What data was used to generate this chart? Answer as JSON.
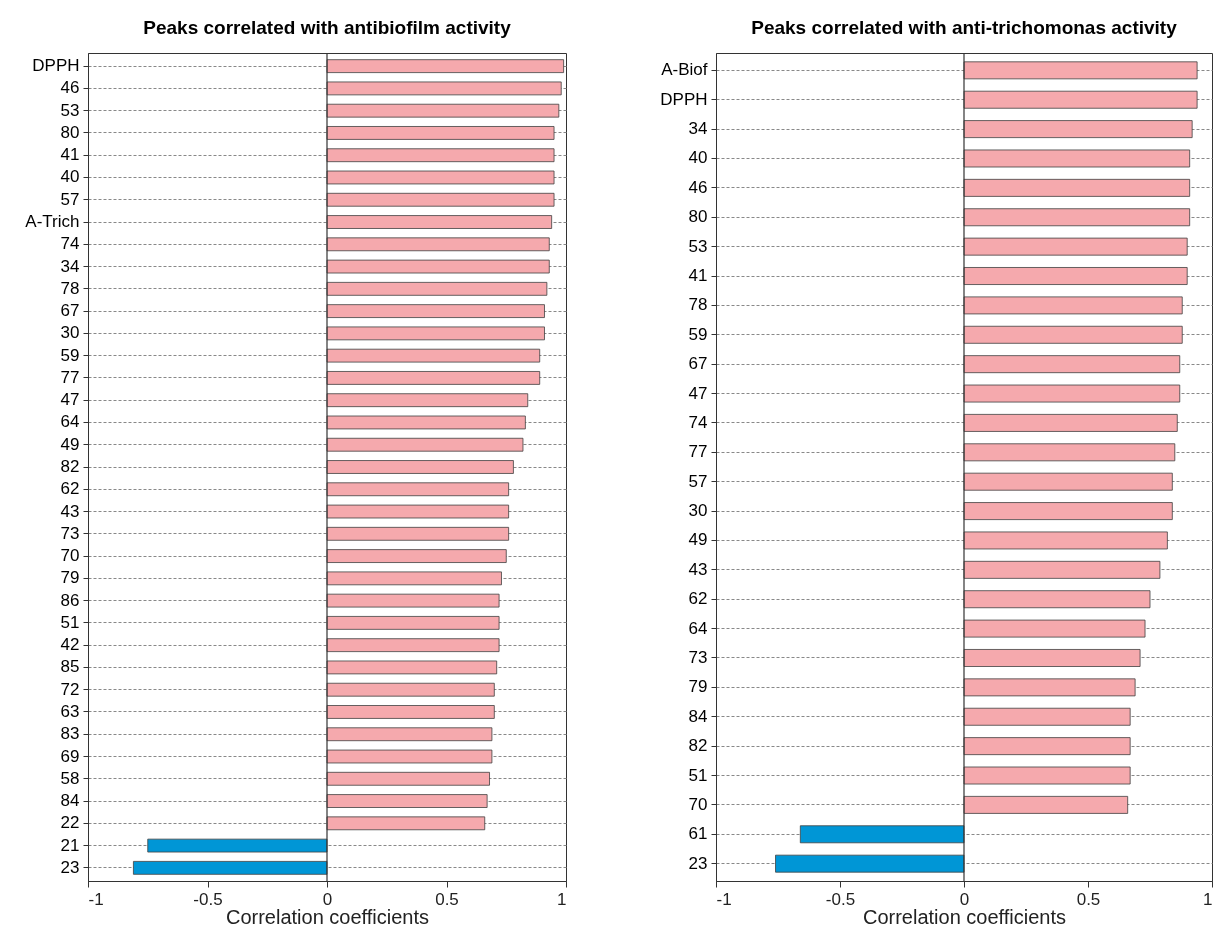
{
  "chart_data": [
    {
      "type": "bar",
      "orientation": "horizontal",
      "title": "Peaks correlated with antibiofilm activity",
      "xlabel": "Correlation coefficients",
      "categories": [
        "DPPH",
        "46",
        "53",
        "80",
        "41",
        "40",
        "57",
        "A-Trich",
        "74",
        "34",
        "78",
        "67",
        "30",
        "59",
        "77",
        "47",
        "64",
        "49",
        "82",
        "62",
        "43",
        "73",
        "70",
        "79",
        "86",
        "51",
        "42",
        "85",
        "72",
        "63",
        "83",
        "69",
        "58",
        "84",
        "22",
        "21",
        "23"
      ],
      "values": [
        0.99,
        0.98,
        0.97,
        0.95,
        0.95,
        0.95,
        0.95,
        0.94,
        0.93,
        0.93,
        0.92,
        0.91,
        0.91,
        0.89,
        0.89,
        0.84,
        0.83,
        0.82,
        0.78,
        0.76,
        0.76,
        0.76,
        0.75,
        0.73,
        0.72,
        0.72,
        0.72,
        0.71,
        0.7,
        0.7,
        0.69,
        0.69,
        0.68,
        0.67,
        0.66,
        -0.75,
        -0.81
      ],
      "colors": [
        "#f5a9ad",
        "#f5a9ad",
        "#f5a9ad",
        "#f5a9ad",
        "#f5a9ad",
        "#f5a9ad",
        "#f5a9ad",
        "#f5a9ad",
        "#f5a9ad",
        "#f5a9ad",
        "#f5a9ad",
        "#f5a9ad",
        "#f5a9ad",
        "#f5a9ad",
        "#f5a9ad",
        "#f5a9ad",
        "#f5a9ad",
        "#f5a9ad",
        "#f5a9ad",
        "#f5a9ad",
        "#f5a9ad",
        "#f5a9ad",
        "#f5a9ad",
        "#f5a9ad",
        "#f5a9ad",
        "#f5a9ad",
        "#f5a9ad",
        "#f5a9ad",
        "#f5a9ad",
        "#f5a9ad",
        "#f5a9ad",
        "#f5a9ad",
        "#f5a9ad",
        "#f5a9ad",
        "#f5a9ad",
        "#0096d6",
        "#0096d6"
      ],
      "xlim": [
        -1,
        1
      ],
      "xticks": [
        -1,
        -0.5,
        0,
        0.5,
        1
      ],
      "grid": "y",
      "ref_lines": [
        {
          "axis": "x",
          "value": 0,
          "color": "#333333"
        }
      ]
    },
    {
      "type": "bar",
      "orientation": "horizontal",
      "title": "Peaks correlated with anti-trichomonas activity",
      "xlabel": "Correlation coefficients",
      "categories": [
        "A-Biof",
        "DPPH",
        "34",
        "40",
        "46",
        "80",
        "53",
        "41",
        "78",
        "59",
        "67",
        "47",
        "74",
        "77",
        "57",
        "30",
        "49",
        "43",
        "62",
        "64",
        "73",
        "79",
        "84",
        "82",
        "51",
        "70",
        "61",
        "23"
      ],
      "values": [
        0.94,
        0.94,
        0.92,
        0.91,
        0.91,
        0.91,
        0.9,
        0.9,
        0.88,
        0.88,
        0.87,
        0.87,
        0.86,
        0.85,
        0.84,
        0.84,
        0.82,
        0.79,
        0.75,
        0.73,
        0.71,
        0.69,
        0.67,
        0.67,
        0.67,
        0.66,
        -0.66,
        -0.76
      ],
      "colors": [
        "#f5a9ad",
        "#f5a9ad",
        "#f5a9ad",
        "#f5a9ad",
        "#f5a9ad",
        "#f5a9ad",
        "#f5a9ad",
        "#f5a9ad",
        "#f5a9ad",
        "#f5a9ad",
        "#f5a9ad",
        "#f5a9ad",
        "#f5a9ad",
        "#f5a9ad",
        "#f5a9ad",
        "#f5a9ad",
        "#f5a9ad",
        "#f5a9ad",
        "#f5a9ad",
        "#f5a9ad",
        "#f5a9ad",
        "#f5a9ad",
        "#f5a9ad",
        "#f5a9ad",
        "#f5a9ad",
        "#f5a9ad",
        "#0096d6",
        "#0096d6"
      ],
      "xlim": [
        -1,
        1
      ],
      "xticks": [
        -1,
        -0.5,
        0,
        0.5,
        1
      ],
      "grid": "y",
      "ref_lines": [
        {
          "axis": "x",
          "value": 0,
          "color": "#333333"
        }
      ]
    }
  ]
}
